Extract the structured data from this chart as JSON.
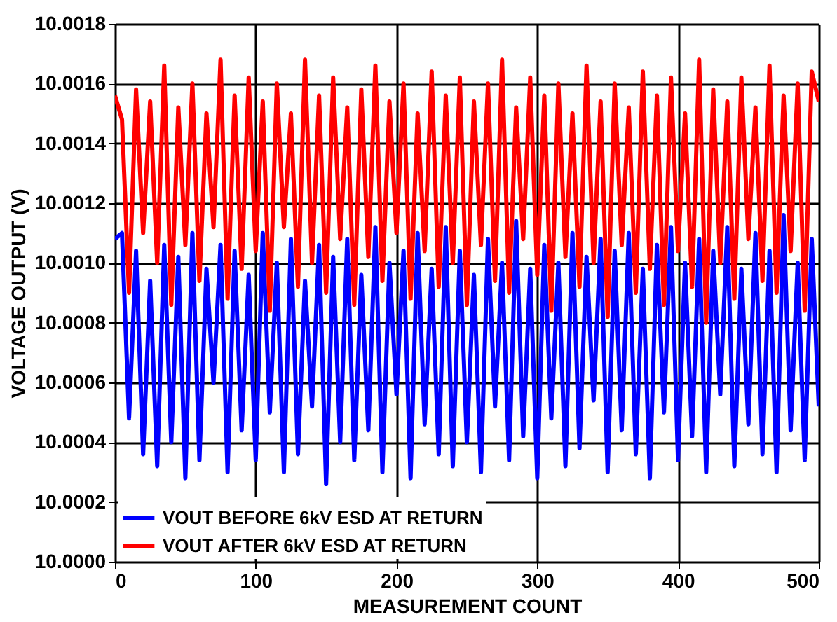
{
  "chart_data": {
    "type": "line",
    "xlabel": "MEASUREMENT COUNT",
    "ylabel": "VOLTAGE OUTPUT (V)",
    "x": [
      0,
      5,
      10,
      15,
      20,
      25,
      30,
      35,
      40,
      45,
      50,
      55,
      60,
      65,
      70,
      75,
      80,
      85,
      90,
      95,
      100,
      105,
      110,
      115,
      120,
      125,
      130,
      135,
      140,
      145,
      150,
      155,
      160,
      165,
      170,
      175,
      180,
      185,
      190,
      195,
      200,
      205,
      210,
      215,
      220,
      225,
      230,
      235,
      240,
      245,
      250,
      255,
      260,
      265,
      270,
      275,
      280,
      285,
      290,
      295,
      300,
      305,
      310,
      315,
      320,
      325,
      330,
      335,
      340,
      345,
      350,
      355,
      360,
      365,
      370,
      375,
      380,
      385,
      390,
      395,
      400,
      405,
      410,
      415,
      420,
      425,
      430,
      435,
      440,
      445,
      450,
      455,
      460,
      465,
      470,
      475,
      480,
      485,
      490,
      495,
      500
    ],
    "series": [
      {
        "name": "VOUT BEFORE 6kV ESD AT RETURN",
        "color": "#0000ff",
        "values": [
          10.00108,
          10.0011,
          10.00048,
          10.00104,
          10.00036,
          10.00094,
          10.00032,
          10.00106,
          10.0004,
          10.00102,
          10.00028,
          10.0011,
          10.00034,
          10.00098,
          10.0006,
          10.00106,
          10.0003,
          10.00104,
          10.00044,
          10.00096,
          10.00034,
          10.0011,
          10.0005,
          10.001,
          10.0003,
          10.00108,
          10.00036,
          10.00094,
          10.00052,
          10.00106,
          10.00026,
          10.00102,
          10.0004,
          10.00108,
          10.00034,
          10.00096,
          10.00044,
          10.00112,
          10.0003,
          10.001,
          10.00056,
          10.00104,
          10.00028,
          10.0011,
          10.00046,
          10.00098,
          10.00036,
          10.00112,
          10.00032,
          10.00104,
          10.0004,
          10.00096,
          10.0003,
          10.00108,
          10.00052,
          10.001,
          10.00034,
          10.00114,
          10.00042,
          10.00098,
          10.00028,
          10.00106,
          10.00048,
          10.001,
          10.00032,
          10.0011,
          10.00038,
          10.00102,
          10.00054,
          10.00108,
          10.0003,
          10.00104,
          10.00044,
          10.0011,
          10.00036,
          10.00098,
          10.00028,
          10.00106,
          10.0005,
          10.00112,
          10.00034,
          10.001,
          10.00042,
          10.00108,
          10.0003,
          10.00104,
          10.00056,
          10.00112,
          10.00032,
          10.00098,
          10.00046,
          10.0011,
          10.00036,
          10.00104,
          10.0003,
          10.00116,
          10.00044,
          10.001,
          10.00034,
          10.00108,
          10.00052
        ]
      },
      {
        "name": "VOUT AFTER 6kV ESD AT RETURN",
        "color": "#ff0000",
        "values": [
          10.00156,
          10.00148,
          10.0009,
          10.00158,
          10.0011,
          10.00154,
          10.001,
          10.00166,
          10.00086,
          10.00152,
          10.00106,
          10.0016,
          10.00094,
          10.0015,
          10.00112,
          10.00168,
          10.00088,
          10.00156,
          10.00098,
          10.00162,
          10.00104,
          10.00154,
          10.00084,
          10.0016,
          10.00112,
          10.0015,
          10.00092,
          10.00168,
          10.001,
          10.00156,
          10.0009,
          10.00162,
          10.00108,
          10.00152,
          10.00086,
          10.00158,
          10.00102,
          10.00166,
          10.00094,
          10.00154,
          10.0011,
          10.0016,
          10.00088,
          10.0015,
          10.00104,
          10.00164,
          10.00092,
          10.00156,
          10.001,
          10.00162,
          10.00086,
          10.00154,
          10.00106,
          10.0016,
          10.00094,
          10.00168,
          10.0009,
          10.00152,
          10.00108,
          10.00162,
          10.00096,
          10.00156,
          10.00084,
          10.0016,
          10.00102,
          10.0015,
          10.00092,
          10.00166,
          10.001,
          10.00154,
          10.00082,
          10.0016,
          10.00106,
          10.00152,
          10.0009,
          10.00164,
          10.00098,
          10.00156,
          10.00086,
          10.00162,
          10.00104,
          10.0015,
          10.00092,
          10.00168,
          10.0008,
          10.00158,
          10.001,
          10.00154,
          10.00088,
          10.00162,
          10.00108,
          10.00152,
          10.00094,
          10.00166,
          10.0009,
          10.00156,
          10.00104,
          10.0016,
          10.00084,
          10.00164,
          10.00154
        ]
      }
    ],
    "xlim": [
      0,
      500
    ],
    "xticks": [
      0,
      100,
      200,
      300,
      400,
      500
    ],
    "ylim": [
      10.0,
      10.0018
    ],
    "yticks": [
      {
        "value": 10.0,
        "label": "10.0000"
      },
      {
        "value": 10.0002,
        "label": "10.0002"
      },
      {
        "value": 10.0004,
        "label": "10.0004"
      },
      {
        "value": 10.0006,
        "label": "10.0006"
      },
      {
        "value": 10.0008,
        "label": "10.0008"
      },
      {
        "value": 10.001,
        "label": "10.0010"
      },
      {
        "value": 10.0012,
        "label": "10.0012"
      },
      {
        "value": 10.0014,
        "label": "10.0014"
      },
      {
        "value": 10.0016,
        "label": "10.0016"
      },
      {
        "value": 10.0018,
        "label": "10.0018"
      }
    ],
    "grid": true,
    "legend": "bottom left",
    "marker": "none",
    "line_style": "solid"
  }
}
